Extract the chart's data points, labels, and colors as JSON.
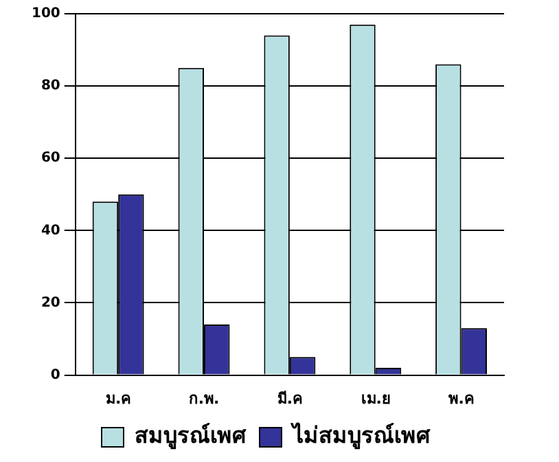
{
  "chart_data": {
    "type": "bar",
    "categories": [
      "ม.ค",
      "ก.พ.",
      "มี.ค",
      "เม.ย",
      "พ.ค"
    ],
    "series": [
      {
        "name": "สมบูรณ์เพศ",
        "color": "#b8e0e3",
        "values": [
          48,
          85,
          94,
          97,
          86
        ]
      },
      {
        "name": "ไม่สมบูรณ์เพศ",
        "color": "#333399",
        "values": [
          50,
          14,
          5,
          2,
          13
        ]
      }
    ],
    "ylim": [
      0,
      100
    ],
    "yticks": [
      0,
      20,
      40,
      60,
      80,
      100
    ],
    "grid": "y",
    "legend": "bottom"
  }
}
